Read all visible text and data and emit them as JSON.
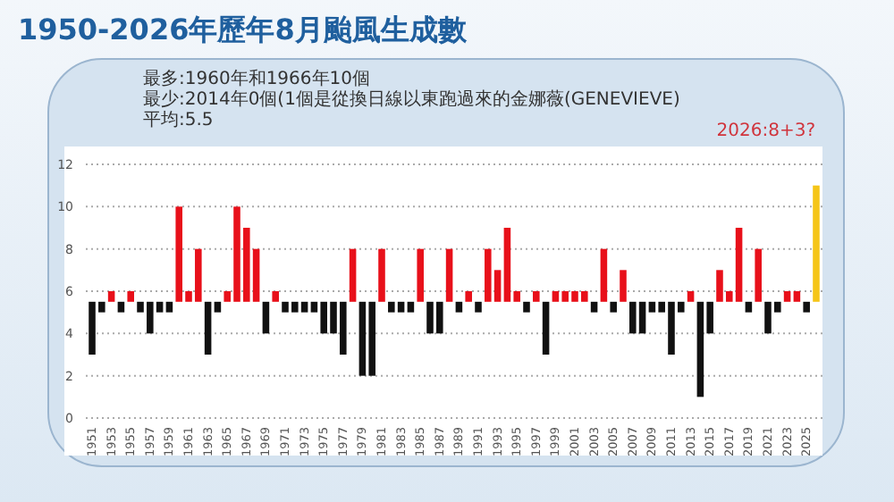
{
  "chart_data": {
    "type": "bar",
    "title": "1950-2026年歷年8月颱風生成數",
    "annotations": [
      "最多:1960年和1966年10個",
      "最少:2014年0個(1個是從換日線以東跑過來的金娜薇(GENEVIEVE)",
      "平均:5.5",
      "2026:8+3?"
    ],
    "categories": [
      "1951",
      null,
      "1953",
      null,
      "1955",
      null,
      "1957",
      null,
      "1959",
      null,
      "1961",
      null,
      "1963",
      null,
      "1965",
      null,
      "1967",
      null,
      "1969",
      null,
      "1971",
      null,
      "1973",
      null,
      "1975",
      null,
      "1977",
      null,
      "1979",
      null,
      "1981",
      null,
      "1983",
      null,
      "1985",
      null,
      "1987",
      null,
      "1989",
      null,
      "1991",
      null,
      "1993",
      null,
      "1995",
      null,
      "1997",
      null,
      "1999",
      null,
      "2001",
      null,
      "2003",
      null,
      "2005",
      null,
      "2007",
      null,
      "2009",
      null,
      "2011",
      null,
      "2013",
      null,
      "2015",
      null,
      "2017",
      null,
      "2019",
      null,
      "2021",
      null,
      "2023",
      null,
      "2025",
      null
    ],
    "base": [
      5.5,
      5.5,
      5.5,
      5.5,
      5.5,
      5.5,
      5.5,
      5.5,
      5.5,
      5.5,
      5.5,
      5.5,
      5.5,
      5.5,
      5.5,
      5.5,
      5.5,
      5.5,
      5.5,
      5.5,
      5.5,
      5.5,
      5.5,
      5.5,
      5.5,
      5.5,
      5.5,
      5.5,
      5.5,
      5.5,
      5.5,
      5.5,
      5.5,
      5.5,
      5.5,
      5.5,
      5.5,
      5.5,
      5.5,
      5.5,
      5.5,
      5.5,
      5.5,
      5.5,
      5.5,
      5.5,
      5.5,
      5.5,
      5.5,
      5.5,
      5.5,
      5.5,
      5.5,
      5.5,
      5.5,
      5.5,
      5.5,
      5.5,
      5.5,
      5.5,
      5.5,
      5.5,
      5.5,
      5.5,
      5.5,
      5.5,
      5.5,
      5.5,
      5.5,
      5.5,
      5.5,
      5.5,
      5.5,
      5.5,
      5.5,
      5.5
    ],
    "values": [
      -2.5,
      -0.5,
      0.5,
      -0.5,
      0.5,
      -0.5,
      -1.5,
      -0.5,
      -0.5,
      4.5,
      0.5,
      2.5,
      -2.5,
      -0.5,
      0.5,
      4.5,
      3.5,
      2.5,
      -1.5,
      0.5,
      -0.5,
      -0.5,
      -0.5,
      -0.5,
      -1.5,
      -1.5,
      -2.5,
      2.5,
      -3.5,
      -3.5,
      2.5,
      -0.5,
      -0.5,
      -0.5,
      2.5,
      -1.5,
      -1.5,
      2.5,
      -0.5,
      0.5,
      -0.5,
      2.5,
      1.5,
      3.5,
      0.5,
      -0.5,
      0.5,
      -2.5,
      0.5,
      0.5,
      0.5,
      0.5,
      -0.5,
      2.5,
      -0.5,
      1.5,
      -1.5,
      -1.5,
      -0.5,
      -0.5,
      -2.5,
      -0.5,
      0.5,
      -4.5,
      -1.5,
      1.5,
      0.5,
      3.5,
      -0.5,
      2.5,
      -1.5,
      -0.5,
      0.5,
      0.5,
      -0.5,
      5.5
    ],
    "colors": [
      "#111111",
      "#111111",
      "#e8101a",
      "#111111",
      "#e8101a",
      "#111111",
      "#111111",
      "#111111",
      "#111111",
      "#e8101a",
      "#e8101a",
      "#e8101a",
      "#111111",
      "#111111",
      "#e8101a",
      "#e8101a",
      "#e8101a",
      "#e8101a",
      "#111111",
      "#e8101a",
      "#111111",
      "#111111",
      "#111111",
      "#111111",
      "#111111",
      "#111111",
      "#111111",
      "#e8101a",
      "#111111",
      "#111111",
      "#e8101a",
      "#111111",
      "#111111",
      "#111111",
      "#e8101a",
      "#111111",
      "#111111",
      "#e8101a",
      "#111111",
      "#e8101a",
      "#111111",
      "#e8101a",
      "#e8101a",
      "#e8101a",
      "#e8101a",
      "#111111",
      "#e8101a",
      "#111111",
      "#e8101a",
      "#e8101a",
      "#e8101a",
      "#e8101a",
      "#111111",
      "#e8101a",
      "#111111",
      "#e8101a",
      "#111111",
      "#111111",
      "#111111",
      "#111111",
      "#111111",
      "#111111",
      "#e8101a",
      "#111111",
      "#111111",
      "#e8101a",
      "#e8101a",
      "#e8101a",
      "#111111",
      "#e8101a",
      "#111111",
      "#111111",
      "#e8101a",
      "#e8101a",
      "#111111",
      "#f5c518"
    ],
    "ylim": [
      0,
      12
    ],
    "yticks": [
      0,
      2,
      4,
      6,
      8,
      10,
      12
    ],
    "grid": "y"
  }
}
